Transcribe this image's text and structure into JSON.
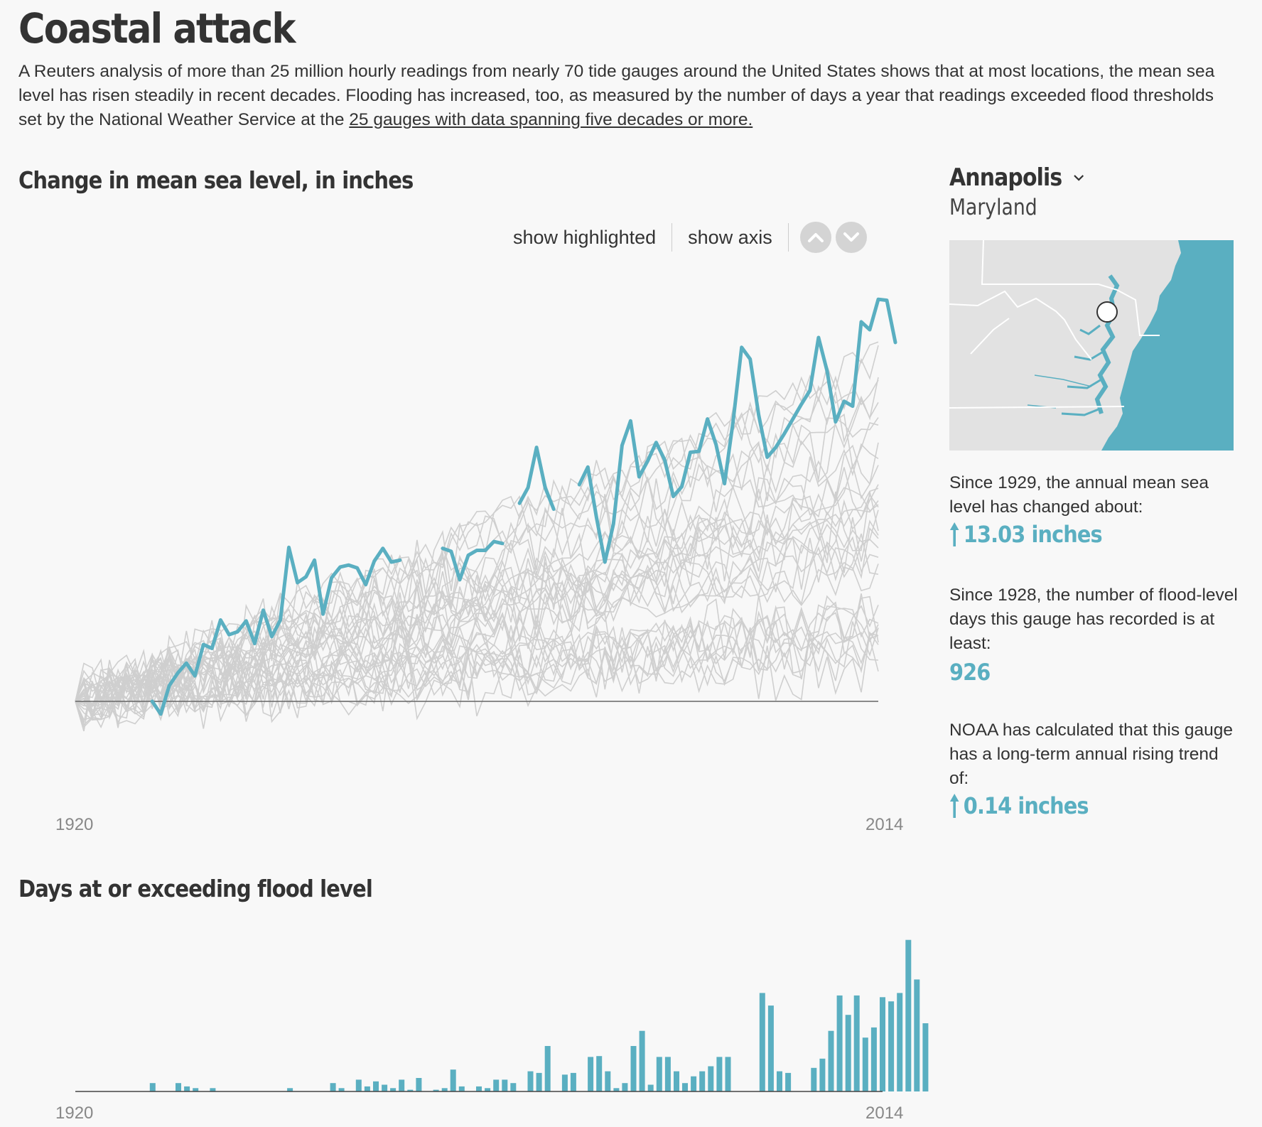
{
  "header": {
    "title": "Coastal attack",
    "intro": "A Reuters analysis of more than 25 million hourly readings from nearly 70 tide gauges around the United States shows that at most locations, the mean sea level has risen steadily in recent decades. Flooding has increased, too, as measured by the number of days a year that readings exceeded flood thresholds set by the National Weather Service at the ",
    "intro_link": "25 gauges with data spanning five decades or more."
  },
  "sea_chart": {
    "title": "Change in mean sea level, in inches",
    "controls": {
      "show_highlighted": "show highlighted",
      "show_axis": "show axis"
    },
    "x_start_label": "1920",
    "x_end_label": "2014"
  },
  "flood_chart": {
    "title": "Days at or exceeding flood level",
    "x_start_label": "1920",
    "x_end_label": "2014"
  },
  "sidebar": {
    "station": "Annapolis",
    "state": "Maryland",
    "stat1_text": "Since 1929, the annual mean sea level has changed about:",
    "stat1_value": "13.03 inches",
    "stat2_text": "Since 1928, the number of flood-level days this gauge has recorded is at least:",
    "stat2_value": "926",
    "stat3_text": "NOAA has calculated that this gauge has a long-term annual rising trend of:",
    "stat3_value": "0.14 inches"
  },
  "colors": {
    "highlight": "#5aafc1",
    "background_lines": "#cfcfcf",
    "baseline": "#666666",
    "map_water": "#5aafc1",
    "map_land": "#e2e2e2"
  },
  "chart_data": [
    {
      "type": "line",
      "title": "Change in mean sea level, in inches",
      "x_range": [
        1920,
        2014
      ],
      "highlighted_series": {
        "name": "Annapolis",
        "start_year": 1929,
        "values": [
          0,
          -1.3,
          1.6,
          2.9,
          3.9,
          2.6,
          5.8,
          5.4,
          8.3,
          6.8,
          7.1,
          8.2,
          5.9,
          9.3,
          6.6,
          8.3,
          15.7,
          12.1,
          12.7,
          14.4,
          8.9,
          12.6,
          13.7,
          13.9,
          13.6,
          11.9,
          14.3,
          15.6,
          14.2,
          14.4,
          null,
          null,
          null,
          null,
          15.6,
          15.3,
          12.4,
          14.9,
          15.4,
          15.4,
          16.3,
          16.1,
          null,
          20.2,
          21.8,
          25.9,
          21.8,
          19.6,
          null,
          null,
          22.1,
          23.9,
          18.8,
          14.2,
          18.1,
          26.1,
          28.6,
          22.9,
          24.5,
          26.4,
          24.6,
          20.9,
          21.9,
          25.4,
          25.5,
          28.8,
          26.2,
          22.2,
          28.5,
          36.1,
          34.9,
          29.2,
          24.9,
          25.9,
          27.3,
          28.8,
          30.3,
          31.7,
          37.1,
          33.7,
          28.5,
          30.6,
          30.1,
          38.7,
          37.9,
          41.0,
          40.9,
          36.6
        ]
      }
    },
    {
      "type": "bar",
      "title": "Days at or exceeding flood level",
      "x_range": [
        1920,
        2014
      ],
      "start_year": 1929,
      "values": [
        1,
        0,
        0,
        1,
        0.6,
        0.4,
        0,
        0.4,
        0,
        0,
        0,
        0,
        0,
        0,
        0,
        0,
        0.4,
        0,
        0,
        0,
        0,
        1,
        0.4,
        0,
        1.4,
        0.6,
        1.2,
        0.8,
        0.4,
        1.4,
        0.2,
        1.6,
        0,
        0.2,
        0.4,
        2.6,
        0.6,
        0,
        0.6,
        0.4,
        1.4,
        1.4,
        1,
        0,
        2.4,
        2.2,
        5.4,
        0,
        2,
        2.2,
        0,
        4.1,
        4.2,
        2.4,
        0.4,
        1,
        5.4,
        7.2,
        0.8,
        4.1,
        4.1,
        2.4,
        1,
        1.8,
        2.4,
        3,
        4.1,
        4.1,
        0,
        0,
        0,
        11.7,
        10.2,
        2.4,
        2.2,
        0,
        0,
        2.8,
        3.9,
        7.2,
        11.4,
        9.1,
        11.4,
        6.4,
        7.6,
        11.2,
        10.7,
        11.7,
        18,
        13.3,
        8.1
      ]
    }
  ]
}
